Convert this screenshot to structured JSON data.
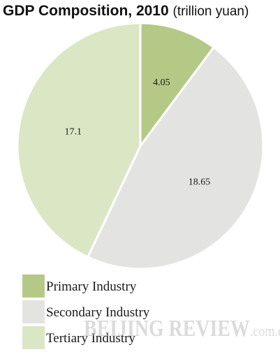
{
  "chart_data": {
    "type": "pie",
    "title": "GDP Composition, 2010",
    "title_unit": "(trillion yuan)",
    "slices": [
      {
        "label": "Primary Industry",
        "value": 4.05,
        "value_label": "4.05",
        "color": "#b5c987"
      },
      {
        "label": "Secondary Industry",
        "value": 18.65,
        "value_label": "18.65",
        "color": "#e3e4e1"
      },
      {
        "label": "Tertiary Industry",
        "value": 17.1,
        "value_label": "17.1",
        "color": "#dbe6c5"
      }
    ],
    "legend_position": "bottom-left",
    "start": "top, clockwise, slices separated by white gaps"
  },
  "watermark": {
    "main": "BEIJING REVIEW",
    "suffix": ".com.cn"
  }
}
